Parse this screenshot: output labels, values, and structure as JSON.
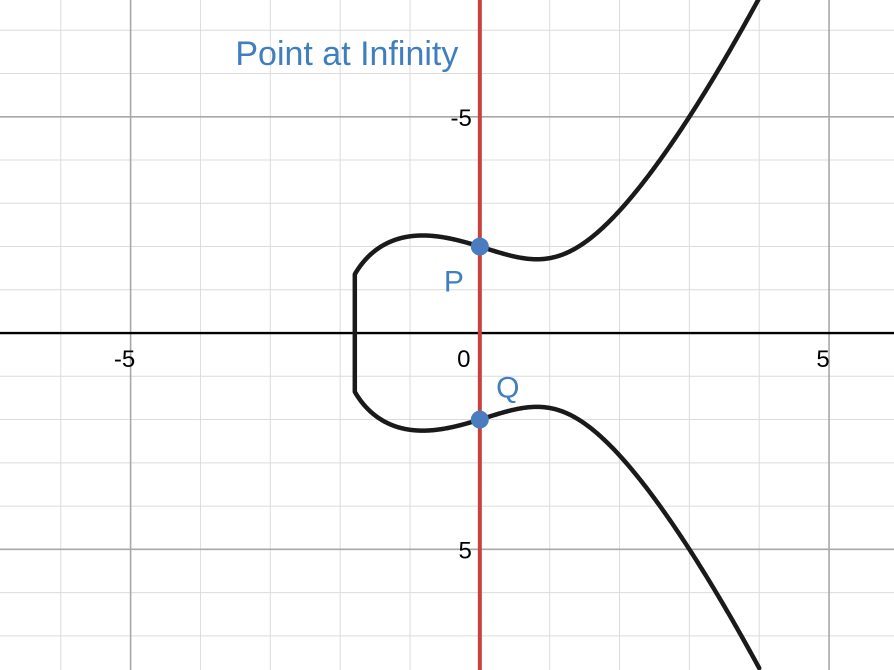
{
  "chart_data": {
    "type": "line",
    "title": "",
    "xlabel": "",
    "ylabel": "",
    "xlim": [
      -6.87,
      5.93
    ],
    "ylim": [
      -7.79,
      7.7
    ],
    "grid": true,
    "x_major_ticks": [
      -5,
      0,
      5
    ],
    "y_major_ticks": [
      -5,
      5
    ],
    "x_tick_labels": [
      "-5",
      "0",
      "5"
    ],
    "y_tick_labels": [
      "5",
      "-5"
    ],
    "annotation": "Point at Infinity",
    "series": [
      {
        "kind": "curve",
        "equation": "y^2 = x^3 - 2x + 4",
        "x_min": -1.79,
        "x_max": 4.0,
        "color": "#1a1a1a"
      },
      {
        "kind": "vertical-line",
        "x": 0,
        "color": "#c8403f"
      }
    ],
    "points": [
      {
        "label": "P",
        "x": 0,
        "y": 2.0
      },
      {
        "label": "Q",
        "x": 0,
        "y": -2.0
      }
    ],
    "colors": {
      "curve": "#1a1a1a",
      "vertical_line": "#c8403f",
      "points": "#4a7dbf",
      "labels": "#3f7fbf",
      "axis": "#000000",
      "major_grid": "#a8a8a8",
      "minor_grid": "#dcdcdc"
    }
  }
}
